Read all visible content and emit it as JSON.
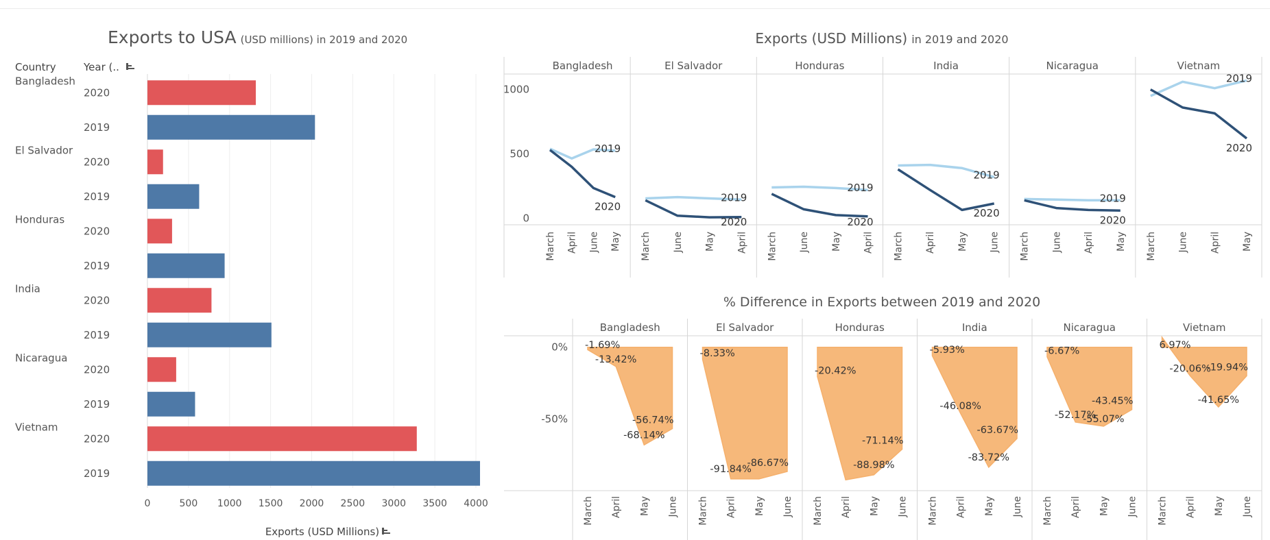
{
  "left_chart": {
    "title_main": "Exports to USA",
    "title_sub": "(USD millions) in 2019 and 2020",
    "header_country": "Country",
    "header_year": "Year (..",
    "xlabel": "Exports (USD Millions)",
    "colors": {
      "2020": "#e15759",
      "2019": "#4e79a7"
    }
  },
  "line_chart": {
    "title_main": "Exports (USD Millions)",
    "title_sub": "in 2019 and 2020",
    "colors": {
      "2019": "#a9d3ec",
      "2020": "#2e5177"
    }
  },
  "area_chart": {
    "title": "% Difference in Exports between 2019 and 2020",
    "color": "#f5b06c"
  },
  "chart_data": [
    {
      "type": "bar",
      "orientation": "horizontal",
      "title": "Exports to USA (USD millions) in 2019 and 2020",
      "xlabel": "Exports (USD Millions)",
      "xlim": [
        0,
        4050
      ],
      "xticks": [
        0,
        500,
        1000,
        1500,
        2000,
        2500,
        3000,
        3500,
        4000
      ],
      "grid": true,
      "rows": [
        {
          "country": "Bangladesh",
          "year": "2020",
          "value": 1320
        },
        {
          "country": "",
          "year": "2019",
          "value": 2040
        },
        {
          "country": "El Salvador",
          "year": "2020",
          "value": 190
        },
        {
          "country": "",
          "year": "2019",
          "value": 630
        },
        {
          "country": "Honduras",
          "year": "2020",
          "value": 300
        },
        {
          "country": "",
          "year": "2019",
          "value": 940
        },
        {
          "country": "India",
          "year": "2020",
          "value": 780
        },
        {
          "country": "",
          "year": "2019",
          "value": 1510
        },
        {
          "country": "Nicaragua",
          "year": "2020",
          "value": 350
        },
        {
          "country": "",
          "year": "2019",
          "value": 580
        },
        {
          "country": "Vietnam",
          "year": "2020",
          "value": 3280
        },
        {
          "country": "",
          "year": "2019",
          "value": 4050
        }
      ]
    },
    {
      "type": "line",
      "title": "Exports (USD Millions) in 2019 and 2020",
      "ylim": [
        -50,
        1120
      ],
      "yticks": [
        0,
        500,
        1000
      ],
      "panels": [
        {
          "name": "Bangladesh",
          "x": [
            "March",
            "April",
            "June",
            "May"
          ],
          "series": [
            {
              "name": "2019",
              "values": [
                540,
                465,
                535,
                525
              ]
            },
            {
              "name": "2020",
              "values": [
                530,
                400,
                235,
                165
              ]
            }
          ]
        },
        {
          "name": "El Salvador",
          "x": [
            "March",
            "June",
            "May",
            "April"
          ],
          "series": [
            {
              "name": "2019",
              "values": [
                155,
                165,
                155,
                145
              ]
            },
            {
              "name": "2020",
              "values": [
                140,
                20,
                8,
                10
              ]
            }
          ]
        },
        {
          "name": "Honduras",
          "x": [
            "March",
            "June",
            "May",
            "April"
          ],
          "series": [
            {
              "name": "2019",
              "values": [
                240,
                245,
                235,
                220
              ]
            },
            {
              "name": "2020",
              "values": [
                190,
                70,
                25,
                15
              ]
            }
          ]
        },
        {
          "name": "India",
          "x": [
            "March",
            "April",
            "May",
            "June"
          ],
          "series": [
            {
              "name": "2019",
              "values": [
                410,
                415,
                390,
                320
              ]
            },
            {
              "name": "2020",
              "values": [
                380,
                220,
                65,
                115
              ]
            }
          ]
        },
        {
          "name": "Nicaragua",
          "x": [
            "March",
            "June",
            "April",
            "May"
          ],
          "series": [
            {
              "name": "2019",
              "values": [
                150,
                145,
                140,
                140
              ]
            },
            {
              "name": "2020",
              "values": [
                140,
                80,
                65,
                60
              ]
            }
          ]
        },
        {
          "name": "Vietnam",
          "x": [
            "March",
            "June",
            "April",
            "May"
          ],
          "series": [
            {
              "name": "2019",
              "values": [
                950,
                1060,
                1010,
                1070
              ]
            },
            {
              "name": "2020",
              "values": [
                1000,
                860,
                815,
                620
              ]
            }
          ]
        }
      ]
    },
    {
      "type": "area",
      "title": "% Difference in Exports between 2019 and 2020",
      "ylim": [
        -100,
        8
      ],
      "yticks": [
        {
          "value": 0,
          "label": "0%"
        },
        {
          "value": -50,
          "label": "-50%"
        }
      ],
      "panels": [
        {
          "name": "Bangladesh",
          "x": [
            "March",
            "April",
            "May",
            "June"
          ],
          "values": [
            -1.69,
            -13.42,
            -68.14,
            -56.74
          ],
          "labels": [
            "-1.69%",
            "-13.42%",
            "-68.14%",
            "-56.74%"
          ]
        },
        {
          "name": "El Salvador",
          "x": [
            "March",
            "April",
            "May",
            "June"
          ],
          "values": [
            -8.33,
            -91.84,
            -91.84,
            -86.67
          ],
          "labels": [
            "-8.33%",
            "-91.84%",
            "",
            "-86.67%"
          ]
        },
        {
          "name": "Honduras",
          "x": [
            "March",
            "April",
            "May",
            "June"
          ],
          "values": [
            -20.42,
            -92.5,
            -88.98,
            -71.14
          ],
          "labels": [
            "-20.42%",
            "",
            "-88.98%",
            "-71.14%"
          ]
        },
        {
          "name": "India",
          "x": [
            "March",
            "April",
            "May",
            "June"
          ],
          "values": [
            -5.93,
            -46.08,
            -83.72,
            -63.67
          ],
          "labels": [
            "-5.93%",
            "-46.08%",
            "-83.72%",
            "-63.67%"
          ]
        },
        {
          "name": "Nicaragua",
          "x": [
            "March",
            "April",
            "May",
            "June"
          ],
          "values": [
            -6.67,
            -52.17,
            -55.07,
            -43.45
          ],
          "labels": [
            "-6.67%",
            "-52.17%",
            "-55.07%",
            "-43.45%"
          ]
        },
        {
          "name": "Vietnam",
          "x": [
            "March",
            "April",
            "May",
            "June"
          ],
          "values": [
            6.97,
            -20.06,
            -41.65,
            -19.94
          ],
          "labels": [
            "6.97%",
            "-20.06%",
            "-41.65%",
            "-19.94%"
          ]
        }
      ]
    }
  ]
}
